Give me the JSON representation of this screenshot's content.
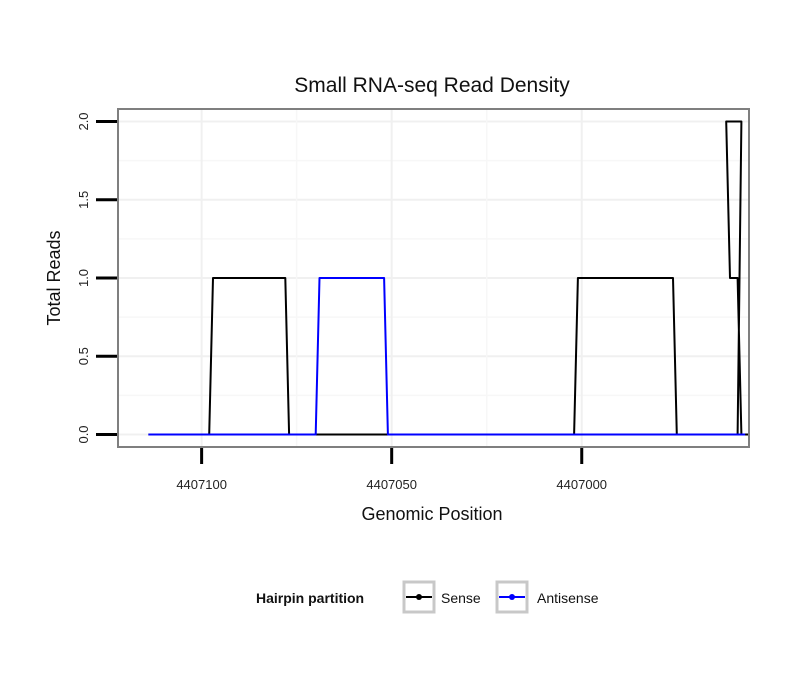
{
  "chart_data": {
    "type": "line",
    "title": "Small RNA-seq Read Density",
    "xlabel": "Genomic Position",
    "ylabel": "Total Reads",
    "x_reversed": true,
    "xlim": [
      4407122,
      4406956
    ],
    "ylim": [
      -0.08,
      2.08
    ],
    "x_ticks": [
      4407100,
      4407050,
      4407000
    ],
    "x_tick_labels": [
      "4407100",
      "4407050",
      "4407000"
    ],
    "y_ticks": [
      0,
      0.5,
      1,
      1.5,
      2
    ],
    "y_tick_labels": [
      "0.0",
      "0.5",
      "1.0",
      "1.5",
      "2.0"
    ],
    "grid": true,
    "legend_title": "Hairpin partition",
    "legend_position": "bottom",
    "colors": {
      "Sense": "#000000",
      "Antisense": "#0000ff"
    },
    "series": [
      {
        "name": "Sense",
        "x": [
          4407114,
          4407098,
          4407097,
          4407078,
          4407077,
          4407002,
          4407001,
          4406976,
          4406975,
          4406959,
          4406958,
          4406962,
          4406961,
          4406959,
          4406958,
          4406958,
          4406956
        ],
        "y": [
          0,
          0,
          1,
          1,
          0,
          0,
          1,
          1,
          0,
          0,
          2,
          2,
          1,
          1,
          0,
          0,
          0
        ]
      },
      {
        "name": "Antisense",
        "x": [
          4407114,
          4407070,
          4407069,
          4407052,
          4407051,
          4406957
        ],
        "y": [
          0,
          0,
          1,
          1,
          0,
          0
        ]
      }
    ]
  }
}
